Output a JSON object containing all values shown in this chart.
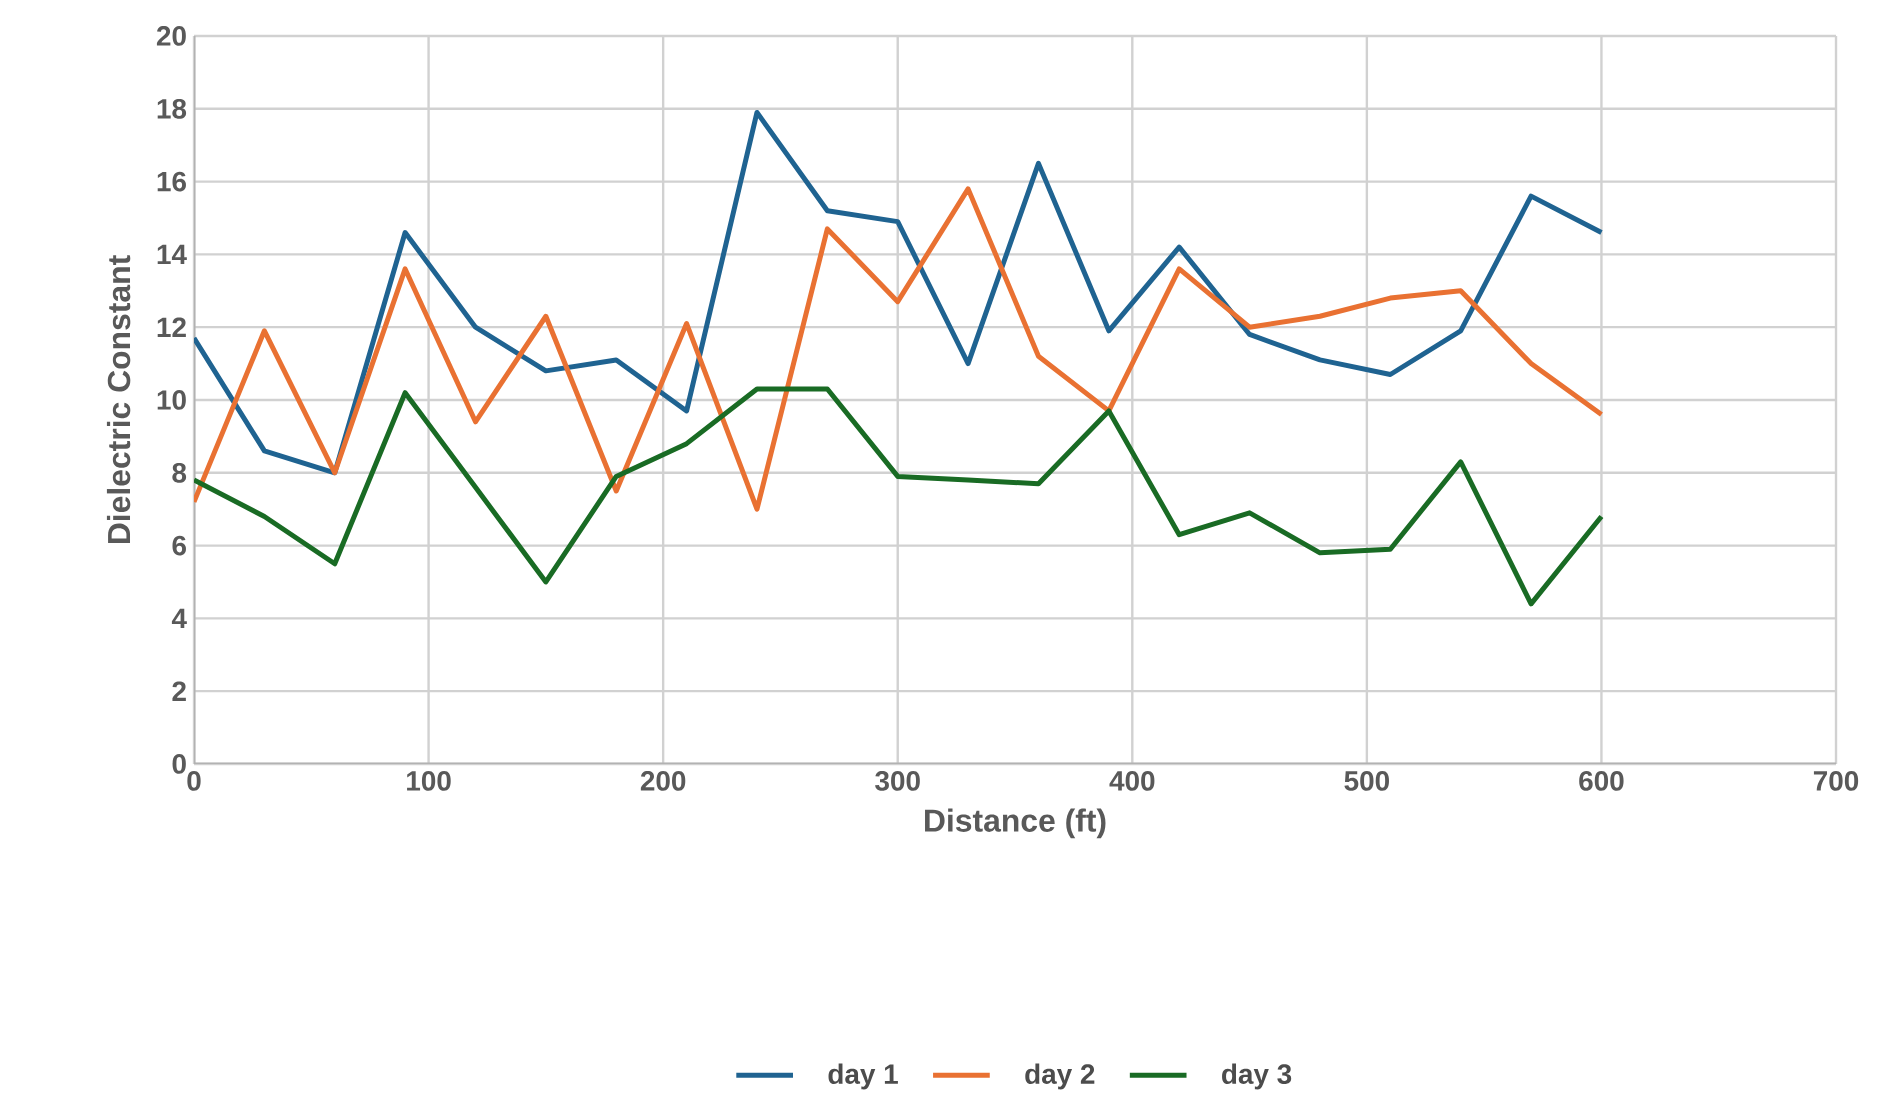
{
  "chart_data": {
    "type": "line",
    "xlabel": "Distance (ft)",
    "ylabel": "Dielectric Constant",
    "x": [
      0,
      30,
      60,
      90,
      120,
      150,
      180,
      210,
      240,
      270,
      300,
      330,
      360,
      390,
      420,
      450,
      480,
      510,
      540,
      570,
      600
    ],
    "series": [
      {
        "name": "day 1",
        "color": "#1f6391",
        "values": [
          11.7,
          8.6,
          8.0,
          14.6,
          12.0,
          10.8,
          11.1,
          9.7,
          17.9,
          15.2,
          14.9,
          11.0,
          16.5,
          11.9,
          14.2,
          11.8,
          11.1,
          10.7,
          11.9,
          15.6,
          14.6
        ]
      },
      {
        "name": "day 2",
        "color": "#e97132",
        "values": [
          7.2,
          11.9,
          8.0,
          13.6,
          9.4,
          12.3,
          7.5,
          12.1,
          7.0,
          14.7,
          12.7,
          15.8,
          11.2,
          9.7,
          13.6,
          12.0,
          12.3,
          12.8,
          13.0,
          11.0,
          9.6
        ]
      },
      {
        "name": "day 3",
        "color": "#196b24",
        "values": [
          7.8,
          6.8,
          5.5,
          10.2,
          7.6,
          5.0,
          7.9,
          8.8,
          10.3,
          10.3,
          7.9,
          7.8,
          7.7,
          9.7,
          6.3,
          6.9,
          5.8,
          5.9,
          8.3,
          4.4,
          6.8
        ]
      }
    ],
    "xlim": [
      0,
      700
    ],
    "xticks": [
      0,
      100,
      200,
      300,
      400,
      500,
      600,
      700
    ],
    "ylim": [
      0,
      20
    ],
    "yticks": [
      0,
      2,
      4,
      6,
      8,
      10,
      12,
      14,
      16,
      18,
      20
    ],
    "grid": true,
    "legend": "bottom",
    "marker": "none",
    "line_style": "solid"
  }
}
